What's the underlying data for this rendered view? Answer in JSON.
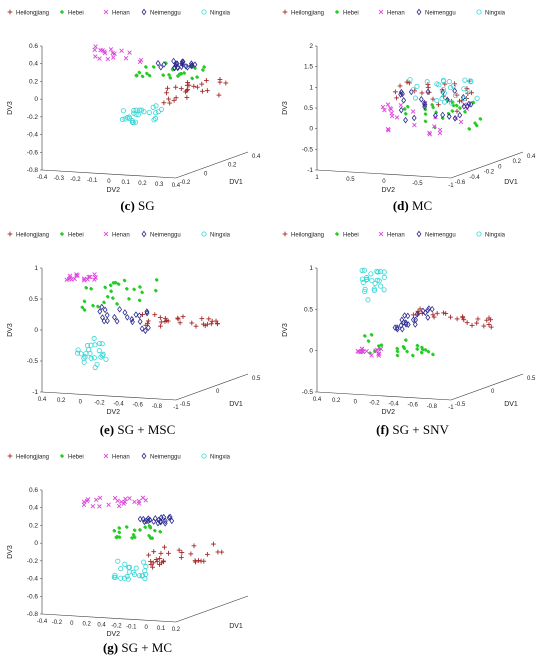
{
  "legend": {
    "items": [
      {
        "name": "Heilongjiang",
        "color": "#a52a2a",
        "marker": "plus"
      },
      {
        "name": "Hebei",
        "color": "#22cc22",
        "marker": "star"
      },
      {
        "name": "Henan",
        "color": "#dd44dd",
        "marker": "x"
      },
      {
        "name": "Neimenggu",
        "color": "#2b2b8f",
        "marker": "diamond"
      },
      {
        "name": "Ningxia",
        "color": "#33d6d6",
        "marker": "circle"
      }
    ]
  },
  "chart_data": [
    {
      "id": "c",
      "type": "scatter",
      "caption_letter": "(c)",
      "caption_text": "SG",
      "xlabel": "DV2",
      "ylabel": "DV1",
      "zlabel": "DV3",
      "zticks": [
        "0.6",
        "0.4",
        "0.2",
        "0",
        "-0.2",
        "-0.4",
        "-0.6",
        "-0.8"
      ],
      "xticks": [
        "-0.4",
        "-0.3",
        "-0.2",
        "-0.1",
        "0",
        "0.1",
        "0.2",
        "0.3",
        "0.4"
      ],
      "yticks": [
        "-0.2",
        "0",
        "0.2",
        "0.4"
      ],
      "clusters": [
        {
          "series": 0,
          "cx": 0.72,
          "cy": 0.36,
          "sx": 0.16,
          "sy": 0.08,
          "n": 26,
          "trend": -0.25
        },
        {
          "series": 1,
          "cx": 0.6,
          "cy": 0.2,
          "sx": 0.18,
          "sy": 0.06,
          "n": 24,
          "trend": 0.1
        },
        {
          "series": 2,
          "cx": 0.34,
          "cy": 0.08,
          "sx": 0.12,
          "sy": 0.05,
          "n": 18,
          "trend": 0.25
        },
        {
          "series": 3,
          "cx": 0.64,
          "cy": 0.15,
          "sx": 0.1,
          "sy": 0.03,
          "n": 22,
          "trend": 0.0
        },
        {
          "series": 4,
          "cx": 0.46,
          "cy": 0.55,
          "sx": 0.1,
          "sy": 0.06,
          "n": 26,
          "trend": -0.2
        }
      ]
    },
    {
      "id": "d",
      "type": "scatter",
      "caption_letter": "(d)",
      "caption_text": "MC",
      "xlabel": "DV2",
      "ylabel": "DV1",
      "zlabel": "DV3",
      "zticks": [
        "2",
        "1.5",
        "1",
        "0.5",
        "0",
        "-0.5",
        "-1"
      ],
      "xticks": [
        "1",
        "0.5",
        "0",
        "-0.5",
        "-1"
      ],
      "yticks": [
        "-0.6",
        "-0.4",
        "-0.2",
        "0",
        "0.2",
        "0.4"
      ],
      "clusters": [
        {
          "series": 0,
          "cx": 0.55,
          "cy": 0.42,
          "sx": 0.22,
          "sy": 0.14,
          "n": 26,
          "trend": 0
        },
        {
          "series": 1,
          "cx": 0.58,
          "cy": 0.55,
          "sx": 0.2,
          "sy": 0.14,
          "n": 24,
          "trend": 0
        },
        {
          "series": 2,
          "cx": 0.5,
          "cy": 0.58,
          "sx": 0.22,
          "sy": 0.14,
          "n": 24,
          "trend": 0
        },
        {
          "series": 3,
          "cx": 0.55,
          "cy": 0.48,
          "sx": 0.18,
          "sy": 0.12,
          "n": 26,
          "trend": 0
        },
        {
          "series": 4,
          "cx": 0.6,
          "cy": 0.36,
          "sx": 0.18,
          "sy": 0.1,
          "n": 26,
          "trend": 0
        }
      ]
    },
    {
      "id": "e",
      "type": "scatter",
      "caption_letter": "(e)",
      "caption_text": "SG + MSC",
      "xlabel": "DV2",
      "ylabel": "DV1",
      "zlabel": "DV3",
      "zticks": [
        "1",
        "0.5",
        "0",
        "-0.5",
        "-1"
      ],
      "xticks": [
        "0.4",
        "0.2",
        "0",
        "-0.2",
        "-0.4",
        "-0.6",
        "-0.8",
        "-1"
      ],
      "yticks": [
        "-0.5",
        "0",
        "0.5"
      ],
      "clusters": [
        {
          "series": 0,
          "cx": 0.66,
          "cy": 0.42,
          "sx": 0.2,
          "sy": 0.05,
          "n": 28,
          "trend": 0.0
        },
        {
          "series": 1,
          "cx": 0.34,
          "cy": 0.2,
          "sx": 0.22,
          "sy": 0.1,
          "n": 26,
          "trend": -0.3
        },
        {
          "series": 2,
          "cx": 0.16,
          "cy": 0.07,
          "sx": 0.08,
          "sy": 0.03,
          "n": 18,
          "trend": 0
        },
        {
          "series": 3,
          "cx": 0.38,
          "cy": 0.4,
          "sx": 0.14,
          "sy": 0.08,
          "n": 22,
          "trend": 0.3
        },
        {
          "series": 4,
          "cx": 0.2,
          "cy": 0.68,
          "sx": 0.08,
          "sy": 0.12,
          "n": 24,
          "trend": 0.2
        }
      ]
    },
    {
      "id": "f",
      "type": "scatter",
      "caption_letter": "(f)",
      "caption_text": "SG + SNV",
      "xlabel": "DV2",
      "ylabel": "DV1",
      "zlabel": "DV3",
      "zticks": [
        "1",
        "0.5",
        "0",
        "-0.5"
      ],
      "xticks": [
        "0.4",
        "0.2",
        "0",
        "-0.2",
        "-0.4",
        "-0.6",
        "-0.8",
        "-1"
      ],
      "yticks": [
        "-0.5",
        "0",
        "0.5"
      ],
      "clusters": [
        {
          "series": 0,
          "cx": 0.64,
          "cy": 0.4,
          "sx": 0.2,
          "sy": 0.05,
          "n": 26,
          "trend": 0.25
        },
        {
          "series": 1,
          "cx": 0.36,
          "cy": 0.64,
          "sx": 0.18,
          "sy": 0.08,
          "n": 24,
          "trend": 0.2
        },
        {
          "series": 2,
          "cx": 0.22,
          "cy": 0.68,
          "sx": 0.08,
          "sy": 0.03,
          "n": 16,
          "trend": 0
        },
        {
          "series": 3,
          "cx": 0.44,
          "cy": 0.42,
          "sx": 0.1,
          "sy": 0.08,
          "n": 22,
          "trend": -0.3
        },
        {
          "series": 4,
          "cx": 0.24,
          "cy": 0.14,
          "sx": 0.06,
          "sy": 0.12,
          "n": 24,
          "trend": 0.1
        }
      ]
    },
    {
      "id": "g",
      "type": "scatter",
      "caption_letter": "(g)",
      "caption_text": "SG + MC",
      "xlabel": "DV2",
      "ylabel": "DV1",
      "zlabel": "DV3",
      "zticks": [
        "0.6",
        "0.4",
        "0.2",
        "0",
        "-0.2",
        "-0.4",
        "-0.6",
        "-0.8"
      ],
      "xticks": [
        "-0.4",
        "-0.2",
        "0",
        "0.2",
        "0.4",
        "-0.2",
        "-0.1",
        "0",
        "0.1",
        "0.2"
      ],
      "yticks": [],
      "clusters": [
        {
          "series": 0,
          "cx": 0.66,
          "cy": 0.52,
          "sx": 0.2,
          "sy": 0.08,
          "n": 30,
          "trend": -0.2
        },
        {
          "series": 1,
          "cx": 0.44,
          "cy": 0.34,
          "sx": 0.12,
          "sy": 0.05,
          "n": 22,
          "trend": 0
        },
        {
          "series": 2,
          "cx": 0.32,
          "cy": 0.1,
          "sx": 0.16,
          "sy": 0.04,
          "n": 22,
          "trend": 0
        },
        {
          "series": 3,
          "cx": 0.52,
          "cy": 0.24,
          "sx": 0.1,
          "sy": 0.03,
          "n": 20,
          "trend": 0
        },
        {
          "series": 4,
          "cx": 0.4,
          "cy": 0.64,
          "sx": 0.08,
          "sy": 0.08,
          "n": 24,
          "trend": 0
        }
      ]
    }
  ]
}
